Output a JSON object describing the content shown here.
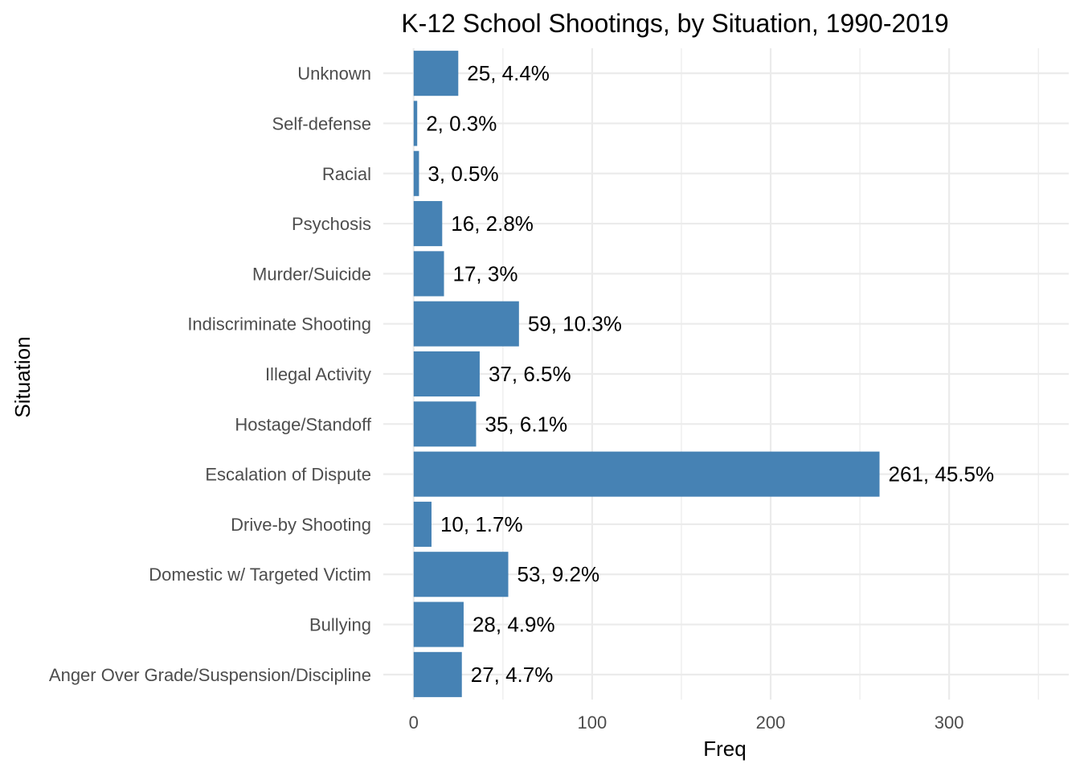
{
  "chart_data": {
    "type": "bar",
    "orientation": "horizontal",
    "title": "K-12 School Shootings, by Situation, 1990-2019",
    "xlabel": "Freq",
    "ylabel": "Situation",
    "xlim": [
      -17,
      367
    ],
    "x_ticks": [
      0,
      100,
      200,
      300
    ],
    "x_minor_ticks": [
      50,
      150,
      250,
      350
    ],
    "grid": true,
    "legend": "none",
    "bar_color": "#4682B4",
    "grid_color": "#EBEBEB",
    "text_color": "#000000",
    "tick_label_color": "#4D4D4D",
    "categories": [
      "Anger Over Grade/Suspension/Discipline",
      "Bullying",
      "Domestic w/ Targeted Victim",
      "Drive-by Shooting",
      "Escalation of Dispute",
      "Hostage/Standoff",
      "Illegal Activity",
      "Indiscriminate Shooting",
      "Murder/Suicide",
      "Psychosis",
      "Racial",
      "Self-defense",
      "Unknown"
    ],
    "values": [
      27,
      28,
      53,
      10,
      261,
      35,
      37,
      59,
      17,
      16,
      3,
      2,
      25
    ],
    "data_labels": [
      "27, 4.7%",
      "28, 4.9%",
      "53, 9.2%",
      "10, 1.7%",
      "261, 45.5%",
      "35, 6.1%",
      "37, 6.5%",
      "59, 10.3%",
      "17, 3%",
      "16, 2.8%",
      "3, 0.5%",
      "2, 0.3%",
      "25, 4.4%"
    ]
  }
}
